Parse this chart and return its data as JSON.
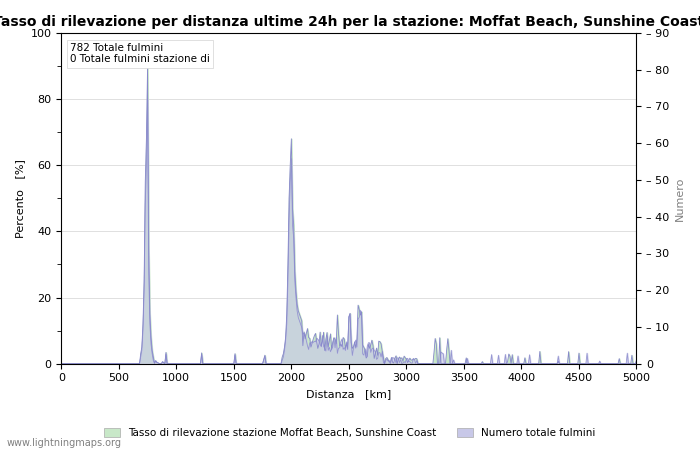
{
  "title": "Tasso di rilevazione per distanza ultime 24h per la stazione: Moffat Beach, Sunshine Coast",
  "xlabel": "Distanza   [km]",
  "ylabel_left": "Percento   [%]",
  "ylabel_right": "Numero",
  "annotation_line1": "782 Totale fulmini",
  "annotation_line2": "0 Totale fulmini stazione di",
  "xlim": [
    0,
    5000
  ],
  "ylim_left": [
    0,
    100
  ],
  "ylim_right": [
    0,
    90
  ],
  "xticks": [
    0,
    500,
    1000,
    1500,
    2000,
    2500,
    3000,
    3500,
    4000,
    4500,
    5000
  ],
  "yticks_left": [
    0,
    20,
    40,
    60,
    80,
    100
  ],
  "yticks_right_labels": [
    0,
    10,
    20,
    30,
    40,
    50,
    60,
    70,
    80,
    90
  ],
  "legend_label_green": "Tasso di rilevazione stazione Moffat Beach, Sunshine Coast",
  "legend_label_blue": "Numero totale fulmini",
  "watermark": "www.lightningmaps.org",
  "line_color": "#8888cc",
  "fill_color_green": "#c8e8c8",
  "fill_color_blue": "#c8c8e8",
  "title_fontsize": 10,
  "axis_fontsize": 8,
  "tick_fontsize": 8
}
